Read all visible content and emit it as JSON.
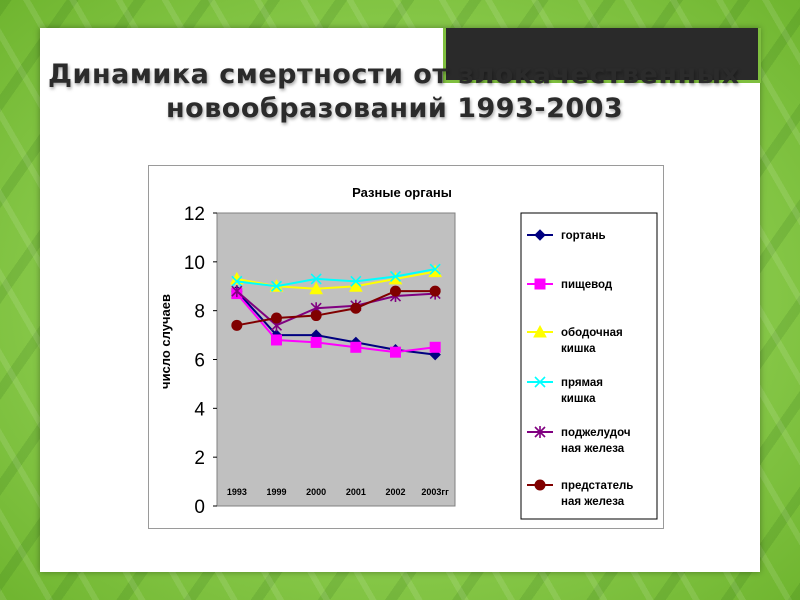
{
  "title": {
    "line1": "Динамика смертности от злокачественных",
    "line2": "новообразований 1993-2003"
  },
  "colors": {
    "plot_bg": "#c0c0c0",
    "background_green": "#7cc33f"
  },
  "chart_data": {
    "type": "line",
    "title": "Разные органы",
    "ylabel": "число случаев",
    "xlabel": "",
    "categories": [
      "1993",
      "1999",
      "2000",
      "2001",
      "2002",
      "2003гг"
    ],
    "ylim": [
      0,
      12
    ],
    "yticks": [
      0,
      2,
      4,
      6,
      8,
      10,
      12
    ],
    "grid": false,
    "legend_position": "right",
    "series": [
      {
        "name": "гортань",
        "values": [
          8.8,
          7.0,
          7.0,
          6.7,
          6.4,
          6.2
        ],
        "color": "#000080",
        "marker": "diamond"
      },
      {
        "name": "пищевод",
        "values": [
          8.7,
          6.8,
          6.7,
          6.5,
          6.3,
          6.5
        ],
        "color": "#ff00ff",
        "marker": "square"
      },
      {
        "name": "ободочная кишка",
        "values": [
          9.3,
          9.0,
          8.9,
          9.0,
          9.3,
          9.6
        ],
        "color": "#ffff00",
        "marker": "triangle"
      },
      {
        "name": "прямая кишка",
        "values": [
          9.2,
          9.0,
          9.3,
          9.2,
          9.4,
          9.7
        ],
        "color": "#00ffff",
        "marker": "x"
      },
      {
        "name": "поджелудочная железа",
        "values": [
          8.8,
          7.4,
          8.1,
          8.2,
          8.6,
          8.7
        ],
        "color": "#800080",
        "marker": "star"
      },
      {
        "name": "предстательная железа",
        "values": [
          7.4,
          7.7,
          7.8,
          8.1,
          8.8,
          8.8
        ],
        "color": "#800000",
        "marker": "circle"
      }
    ],
    "legend_labels": [
      [
        "гортань"
      ],
      [
        "пищевод"
      ],
      [
        "ободочная",
        "кишка"
      ],
      [
        "прямая",
        "кишка"
      ],
      [
        "поджелудоч",
        "ная железа"
      ],
      [
        "предстатель",
        "ная железа"
      ]
    ]
  }
}
